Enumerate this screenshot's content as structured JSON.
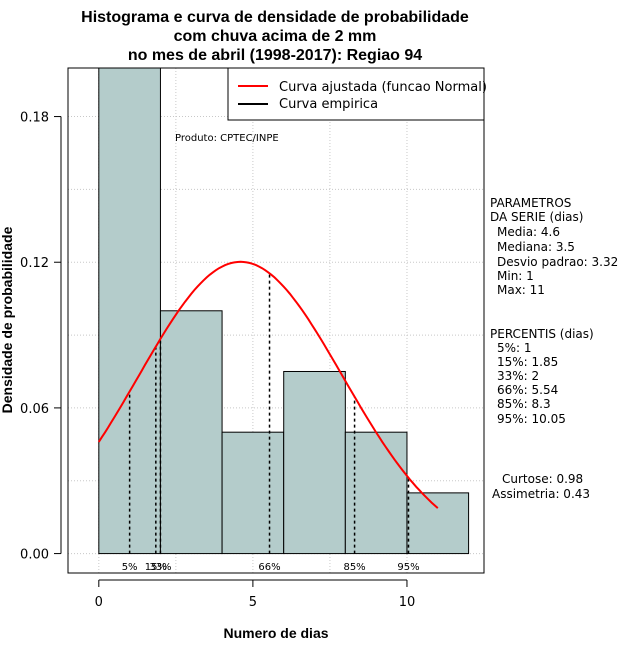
{
  "chart_data": {
    "type": "bar",
    "title_lines": [
      "Histograma e curva de densidade de probabilidade",
      "com chuva acima de 2 mm",
      "no mes de abril (1998-2017): Regiao 94"
    ],
    "xlabel": "Numero de dias",
    "ylabel": "Densidade de probabilidade",
    "xlim": [
      -1,
      12.5
    ],
    "ylim": [
      -0.008,
      0.2
    ],
    "x_ticks": [
      0,
      5,
      10
    ],
    "y_ticks": [
      0.0,
      0.06,
      0.12,
      0.18
    ],
    "y_tick_labels": [
      "0.00",
      "0.06",
      "0.12",
      "0.18"
    ],
    "grid": true,
    "bins": [
      {
        "x0": 0,
        "x1": 2,
        "density": 0.2
      },
      {
        "x0": 2,
        "x1": 4,
        "density": 0.1
      },
      {
        "x0": 4,
        "x1": 6,
        "density": 0.05
      },
      {
        "x0": 6,
        "x1": 8,
        "density": 0.075
      },
      {
        "x0": 8,
        "x1": 10,
        "density": 0.05
      },
      {
        "x0": 10,
        "x1": 12,
        "density": 0.025
      }
    ],
    "fitted_curve": {
      "name": "Curva ajustada (funcao Normal)",
      "color": "#ff0000",
      "mean": 4.6,
      "sd": 3.32,
      "x_range": [
        0,
        11
      ]
    },
    "empirical_curve": {
      "name": "Curva empirica",
      "color": "#000000"
    },
    "percentile_lines": [
      {
        "label": "5%",
        "x": 1
      },
      {
        "label": "15%",
        "x": 1.85
      },
      {
        "label": "33%",
        "x": 2
      },
      {
        "label": "66%",
        "x": 5.54
      },
      {
        "label": "85%",
        "x": 8.3
      },
      {
        "label": "95%",
        "x": 10.05
      }
    ],
    "legend_position": "top-right",
    "bar_color": "#b4cccb",
    "product_note": "Produto: CPTEC/INPE"
  },
  "side_panel": {
    "parametros_title_1": "PARAMETROS",
    "parametros_title_2": "DA SERIE (dias)",
    "parametros": [
      "Media: 4.6",
      "Mediana: 3.5",
      "Desvio padrao: 3.32",
      "Min: 1",
      "Max: 11"
    ],
    "percentis_title": "PERCENTIS (dias)",
    "percentis": [
      "5%: 1",
      "15%: 1.85",
      "33%: 2",
      "66%: 5.54",
      "85%: 8.3",
      "95%: 10.05"
    ],
    "curtose": "Curtose: 0.98",
    "assimetria": "Assimetria: 0.43"
  }
}
